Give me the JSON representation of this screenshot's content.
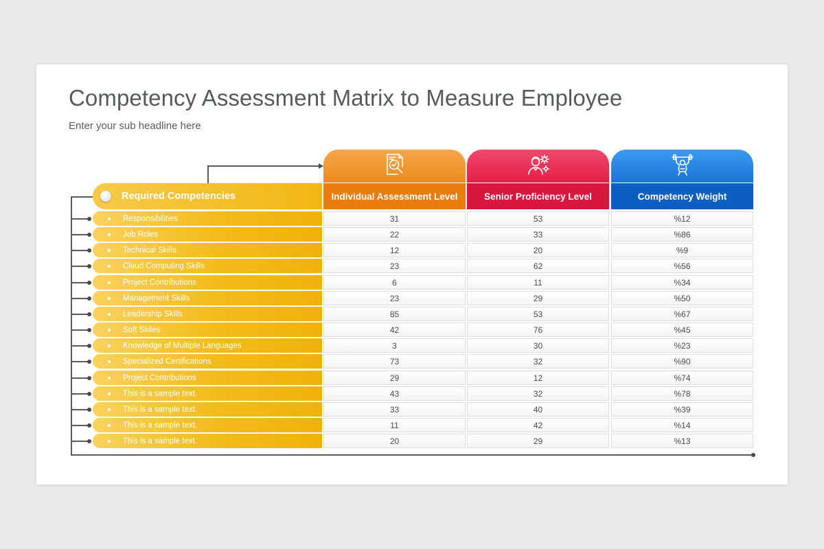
{
  "title": "Competency Assessment Matrix to Measure Employee",
  "subtitle": "Enter your sub headline here",
  "header": {
    "competencies": "Required Competencies",
    "col1": "Individual Assessment Level",
    "col2": "Senior Proficiency Level",
    "col3": "Competency Weight"
  },
  "icons": {
    "col1": "document-search-icon",
    "col2": "person-gears-icon",
    "col3": "weightlifter-icon"
  },
  "colors": {
    "yellow": "#f3bb1a",
    "orange": "#ea7c0c",
    "red": "#d81640",
    "blue": "#0c5ec3"
  },
  "rows": [
    {
      "label": "Responsibilities",
      "individual": "31",
      "senior": "53",
      "weight": "%12"
    },
    {
      "label": "Job Roles",
      "individual": "22",
      "senior": "33",
      "weight": "%86"
    },
    {
      "label": "Technical Skills",
      "individual": "12",
      "senior": "20",
      "weight": "%9"
    },
    {
      "label": "Cloud Computing Skills",
      "individual": "23",
      "senior": "62",
      "weight": "%56"
    },
    {
      "label": "Project Contributions",
      "individual": "6",
      "senior": "11",
      "weight": "%34"
    },
    {
      "label": "Management Skills",
      "individual": "23",
      "senior": "29",
      "weight": "%50"
    },
    {
      "label": "Leadership Skills",
      "individual": "85",
      "senior": "53",
      "weight": "%67"
    },
    {
      "label": "Soft Skiles",
      "individual": "42",
      "senior": "76",
      "weight": "%45"
    },
    {
      "label": "Knowledge of Multiple Languages",
      "individual": "3",
      "senior": "30",
      "weight": "%23"
    },
    {
      "label": "Specialized Certifications",
      "individual": "73",
      "senior": "32",
      "weight": "%90"
    },
    {
      "label": "Project Contributions",
      "individual": "29",
      "senior": "12",
      "weight": "%74"
    },
    {
      "label": "This is a sample text.",
      "individual": "43",
      "senior": "32",
      "weight": "%78"
    },
    {
      "label": "This is a sample text.",
      "individual": "33",
      "senior": "40",
      "weight": "%39"
    },
    {
      "label": "This is a sample text.",
      "individual": "11",
      "senior": "42",
      "weight": "%14"
    },
    {
      "label": "This is a sample text.",
      "individual": "20",
      "senior": "29",
      "weight": "%13"
    }
  ]
}
